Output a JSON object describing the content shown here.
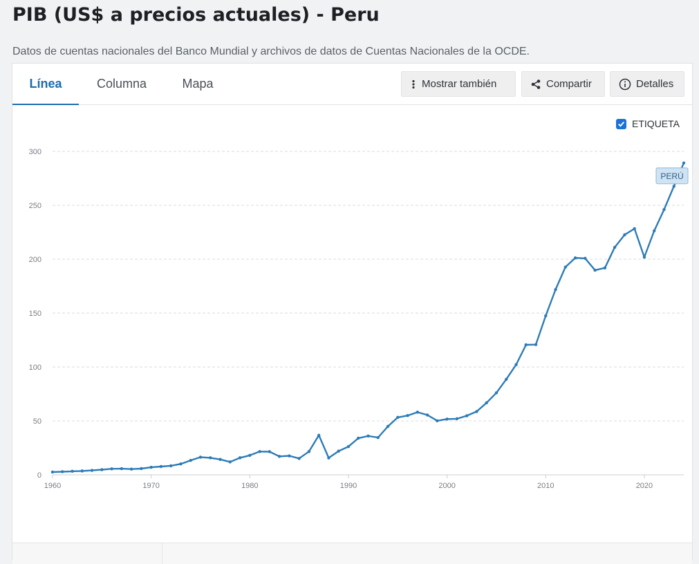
{
  "page": {
    "title": "PIB (US$ a precios actuales) - Peru",
    "subtitle": "Datos de cuentas nacionales del Banco Mundial y archivos de datos de Cuentas Nacionales de la OCDE."
  },
  "tabs": [
    {
      "label": "Línea",
      "active": true
    },
    {
      "label": "Columna",
      "active": false
    },
    {
      "label": "Mapa",
      "active": false
    }
  ],
  "toolbar": {
    "show_also": {
      "label": "Mostrar también",
      "icon": "vertical-dots-icon"
    },
    "share": {
      "label": "Compartir",
      "icon": "share-icon"
    },
    "details": {
      "label": "Detalles",
      "icon": "info-circle-icon"
    }
  },
  "label_toggle": {
    "label": "ETIQUETA",
    "checked": true
  },
  "colors": {
    "series": "#2c7bb6",
    "accent": "#1a6bb0",
    "series_label_bg": "#cfe3f3",
    "series_label_border": "#8db8dc"
  },
  "chart_data": {
    "type": "line",
    "xlim": [
      1960,
      2024
    ],
    "ylim": [
      0,
      300
    ],
    "x_ticks": [
      1960,
      1970,
      1980,
      1990,
      2000,
      2010,
      2020
    ],
    "y_ticks": [
      0,
      50,
      100,
      150,
      200,
      250,
      300
    ],
    "grid": true,
    "series": [
      {
        "name": "PERÚ",
        "x": [
          1960,
          1961,
          1962,
          1963,
          1964,
          1965,
          1966,
          1967,
          1968,
          1969,
          1970,
          1971,
          1972,
          1973,
          1974,
          1975,
          1976,
          1977,
          1978,
          1979,
          1980,
          1981,
          1982,
          1983,
          1984,
          1985,
          1986,
          1987,
          1988,
          1989,
          1990,
          1991,
          1992,
          1993,
          1994,
          1995,
          1996,
          1997,
          1998,
          1999,
          2000,
          2001,
          2002,
          2003,
          2004,
          2005,
          2006,
          2007,
          2008,
          2009,
          2010,
          2011,
          2012,
          2013,
          2014,
          2015,
          2016,
          2017,
          2018,
          2019,
          2020,
          2021,
          2022,
          2023,
          2024
        ],
        "values": [
          2.6,
          2.9,
          3.3,
          3.6,
          4.1,
          4.8,
          5.6,
          5.7,
          5.3,
          5.8,
          7.0,
          7.7,
          8.4,
          10.1,
          13.4,
          16.4,
          15.8,
          14.3,
          12.0,
          15.8,
          18.1,
          21.6,
          21.5,
          17.1,
          17.6,
          15.2,
          21.6,
          36.7,
          15.7,
          22.0,
          26.2,
          34.0,
          36.0,
          34.6,
          44.9,
          53.3,
          55.0,
          58.1,
          55.5,
          50.1,
          51.7,
          52.0,
          54.8,
          58.7,
          66.8,
          76.1,
          88.6,
          102.2,
          120.6,
          120.8,
          147.5,
          171.8,
          192.7,
          201.2,
          200.8,
          189.8,
          191.9,
          211.0,
          222.6,
          228.3,
          201.9,
          226.3,
          246.0,
          267.6,
          289.2
        ]
      }
    ]
  }
}
